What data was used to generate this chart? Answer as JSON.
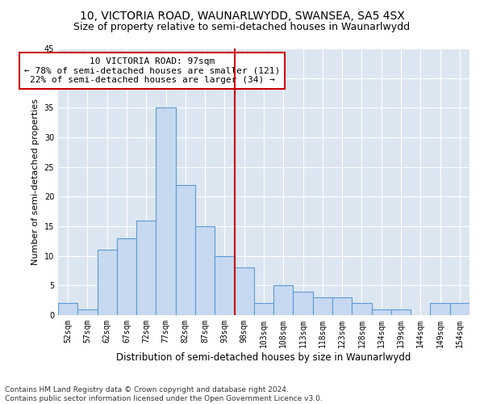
{
  "title1": "10, VICTORIA ROAD, WAUNARLWYDD, SWANSEA, SA5 4SX",
  "title2": "Size of property relative to semi-detached houses in Waunarlwydd",
  "xlabel": "Distribution of semi-detached houses by size in Waunarlwydd",
  "ylabel": "Number of semi-detached properties",
  "bin_labels": [
    "52sqm",
    "57sqm",
    "62sqm",
    "67sqm",
    "72sqm",
    "77sqm",
    "82sqm",
    "87sqm",
    "93sqm",
    "98sqm",
    "103sqm",
    "108sqm",
    "113sqm",
    "118sqm",
    "123sqm",
    "128sqm",
    "134sqm",
    "139sqm",
    "144sqm",
    "149sqm",
    "154sqm"
  ],
  "bar_heights": [
    2,
    1,
    11,
    13,
    16,
    35,
    22,
    15,
    10,
    8,
    2,
    5,
    4,
    3,
    3,
    2,
    1,
    1,
    0,
    2,
    2
  ],
  "bar_color": "#c6d9f0",
  "bar_edge_color": "#5b9bd5",
  "vline_bin_index": 8.5,
  "vline_color": "#cc0000",
  "annotation_text": "10 VICTORIA ROAD: 97sqm\n← 78% of semi-detached houses are smaller (121)\n22% of semi-detached houses are larger (34) →",
  "annotation_box_color": "#ffffff",
  "annotation_box_edge_color": "#cc0000",
  "ylim": [
    0,
    45
  ],
  "yticks": [
    0,
    5,
    10,
    15,
    20,
    25,
    30,
    35,
    40,
    45
  ],
  "bg_color": "#dce6f1",
  "footer_text": "Contains HM Land Registry data © Crown copyright and database right 2024.\nContains public sector information licensed under the Open Government Licence v3.0.",
  "title1_fontsize": 10,
  "title2_fontsize": 9,
  "xlabel_fontsize": 8.5,
  "ylabel_fontsize": 8,
  "annotation_fontsize": 8,
  "footer_fontsize": 6.5,
  "tick_fontsize": 7
}
